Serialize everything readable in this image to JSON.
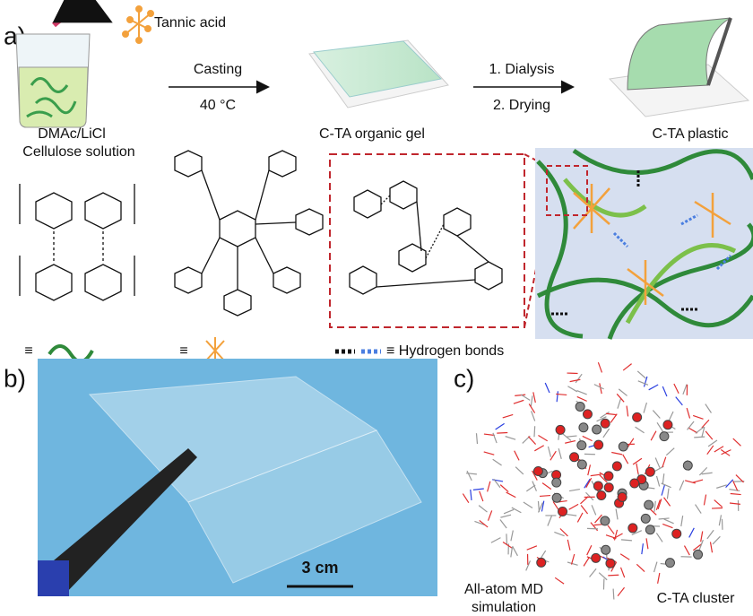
{
  "panel_a": {
    "label": "a)",
    "tannic_acid": "Tannic acid",
    "step1": {
      "top": "Casting",
      "bottom": "40 °C"
    },
    "step2": {
      "top": "1. Dialysis",
      "bottom": "2. Drying"
    },
    "solution": [
      "DMAc/LiCl",
      "Cellulose solution"
    ],
    "gel": "C-TA organic gel",
    "plastic": "C-TA plastic",
    "cellulose_equiv": "≡",
    "tannic_equiv": "≡",
    "hbond_legend": "≡ Hydrogen bonds"
  },
  "panel_b": {
    "label": "b)",
    "scale_bar": "3 cm"
  },
  "panel_c": {
    "label": "c)",
    "left_caption": [
      "All-atom MD",
      "simulation"
    ],
    "right_caption": "C-TA cluster"
  }
}
